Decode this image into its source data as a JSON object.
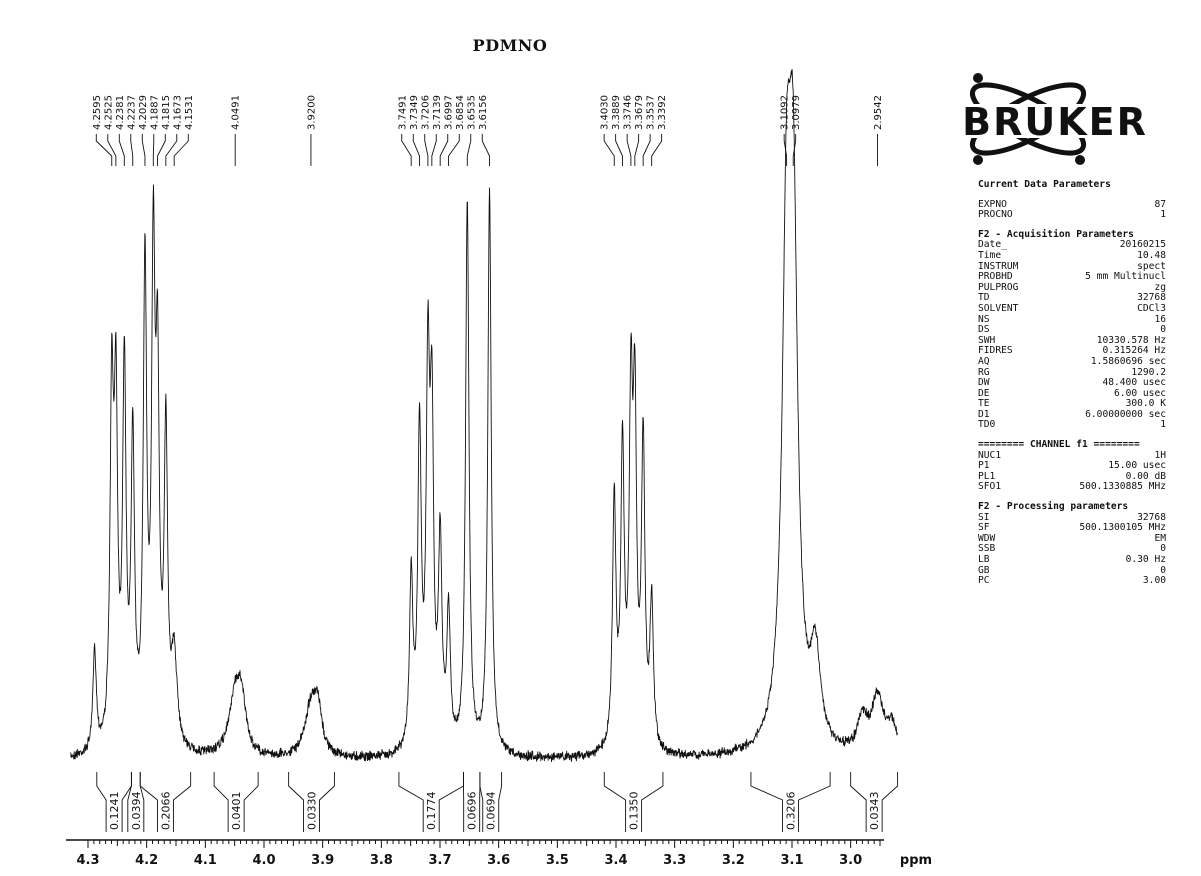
{
  "title": "PDMNO",
  "logo": {
    "text": "BRUKER"
  },
  "params": {
    "current_header": "Current Data Parameters",
    "current": [
      {
        "k": "EXPNO",
        "v": "87"
      },
      {
        "k": "PROCNO",
        "v": "1"
      }
    ],
    "acq_header": "F2 - Acquisition Parameters",
    "acq": [
      {
        "k": "Date_",
        "v": "20160215"
      },
      {
        "k": "Time",
        "v": "10.48"
      },
      {
        "k": "INSTRUM",
        "v": "spect"
      },
      {
        "k": "PROBHD",
        "v": "5 mm Multinucl"
      },
      {
        "k": "PULPROG",
        "v": "zg"
      },
      {
        "k": "TD",
        "v": "32768"
      },
      {
        "k": "SOLVENT",
        "v": "CDCl3"
      },
      {
        "k": "NS",
        "v": "16"
      },
      {
        "k": "DS",
        "v": "0"
      },
      {
        "k": "SWH",
        "v": "10330.578 Hz"
      },
      {
        "k": "FIDRES",
        "v": "0.315264 Hz"
      },
      {
        "k": "AQ",
        "v": "1.5860696 sec"
      },
      {
        "k": "RG",
        "v": "1290.2"
      },
      {
        "k": "DW",
        "v": "48.400 usec"
      },
      {
        "k": "DE",
        "v": "6.00 usec"
      },
      {
        "k": "TE",
        "v": "300.0 K"
      },
      {
        "k": "D1",
        "v": "6.00000000 sec"
      },
      {
        "k": "TD0",
        "v": "1"
      }
    ],
    "channel_header": "======== CHANNEL f1 ========",
    "channel": [
      {
        "k": "NUC1",
        "v": "1H"
      },
      {
        "k": "P1",
        "v": "15.00 usec"
      },
      {
        "k": "PL1",
        "v": "0.00 dB"
      },
      {
        "k": "SFO1",
        "v": "500.1330885 MHz"
      }
    ],
    "proc_header": "F2 - Processing parameters",
    "proc": [
      {
        "k": "SI",
        "v": "32768"
      },
      {
        "k": "SF",
        "v": "500.1300105 MHz"
      },
      {
        "k": "WDW",
        "v": "EM"
      },
      {
        "k": "SSB",
        "v": "0"
      },
      {
        "k": "LB",
        "v": "0.30 Hz"
      },
      {
        "k": "GB",
        "v": "0"
      },
      {
        "k": "PC",
        "v": "3.00"
      }
    ]
  },
  "chart_data": {
    "type": "line",
    "title": "PDMNO",
    "xlabel": "ppm",
    "xlim": [
      4.3,
      2.95
    ],
    "x_reversed": true,
    "ticks": [
      {
        "v": 4.3,
        "label": "4.3"
      },
      {
        "v": 4.2,
        "label": "4.2"
      },
      {
        "v": 4.1,
        "label": "4.1"
      },
      {
        "v": 4.0,
        "label": "4.0"
      },
      {
        "v": 3.9,
        "label": "3.9"
      },
      {
        "v": 3.8,
        "label": "3.8"
      },
      {
        "v": 3.7,
        "label": "3.7"
      },
      {
        "v": 3.6,
        "label": "3.6"
      },
      {
        "v": 3.5,
        "label": "3.5"
      },
      {
        "v": 3.4,
        "label": "3.4"
      },
      {
        "v": 3.3,
        "label": "3.3"
      },
      {
        "v": 3.2,
        "label": "3.2"
      },
      {
        "v": 3.1,
        "label": "3.1"
      },
      {
        "v": 3.0,
        "label": "3.0"
      }
    ],
    "peak_labels": [
      {
        "ppm": 4.2595,
        "label": "4.2595"
      },
      {
        "ppm": 4.2525,
        "label": "4.2525"
      },
      {
        "ppm": 4.2381,
        "label": "4.2381"
      },
      {
        "ppm": 4.2237,
        "label": "4.2237"
      },
      {
        "ppm": 4.2029,
        "label": "4.2029"
      },
      {
        "ppm": 4.1887,
        "label": "4.1887"
      },
      {
        "ppm": 4.1815,
        "label": "4.1815"
      },
      {
        "ppm": 4.1673,
        "label": "4.1673"
      },
      {
        "ppm": 4.1531,
        "label": "4.1531"
      },
      {
        "ppm": 4.0491,
        "label": "4.0491"
      },
      {
        "ppm": 3.92,
        "label": "3.9200"
      },
      {
        "ppm": 3.7491,
        "label": "3.7491"
      },
      {
        "ppm": 3.7349,
        "label": "3.7349"
      },
      {
        "ppm": 3.7206,
        "label": "3.7206"
      },
      {
        "ppm": 3.7139,
        "label": "3.7139"
      },
      {
        "ppm": 3.6997,
        "label": "3.6997"
      },
      {
        "ppm": 3.6854,
        "label": "3.6854"
      },
      {
        "ppm": 3.6535,
        "label": "3.6535"
      },
      {
        "ppm": 3.6156,
        "label": "3.6156"
      },
      {
        "ppm": 3.403,
        "label": "3.4030"
      },
      {
        "ppm": 3.3889,
        "label": "3.3889"
      },
      {
        "ppm": 3.3746,
        "label": "3.3746"
      },
      {
        "ppm": 3.3679,
        "label": "3.3679"
      },
      {
        "ppm": 3.3537,
        "label": "3.3537"
      },
      {
        "ppm": 3.3392,
        "label": "3.3392"
      },
      {
        "ppm": 3.1092,
        "label": "3.1092"
      },
      {
        "ppm": 3.0979,
        "label": "3.0979"
      },
      {
        "ppm": 2.9542,
        "label": "2.9542"
      }
    ],
    "integrals": [
      {
        "from": 4.285,
        "to": 4.226,
        "value": "0.1241"
      },
      {
        "from": 4.226,
        "to": 4.211,
        "value": "0.0394"
      },
      {
        "from": 4.211,
        "to": 4.125,
        "value": "0.2066"
      },
      {
        "from": 4.085,
        "to": 4.01,
        "value": "0.0401"
      },
      {
        "from": 3.958,
        "to": 3.88,
        "value": "0.0330"
      },
      {
        "from": 3.77,
        "to": 3.66,
        "value": "0.1774"
      },
      {
        "from": 3.66,
        "to": 3.632,
        "value": "0.0696"
      },
      {
        "from": 3.632,
        "to": 3.595,
        "value": "0.0694"
      },
      {
        "from": 3.42,
        "to": 3.32,
        "value": "0.1350"
      },
      {
        "from": 3.17,
        "to": 3.035,
        "value": "0.3206"
      },
      {
        "from": 3.0,
        "to": 2.92,
        "value": "0.0343"
      }
    ],
    "peaks": [
      {
        "ppm": 4.2887,
        "h": 0.18,
        "w": 0.0035
      },
      {
        "ppm": 4.2595,
        "h": 0.6,
        "w": 0.0035
      },
      {
        "ppm": 4.2525,
        "h": 0.58,
        "w": 0.0035
      },
      {
        "ppm": 4.2381,
        "h": 0.66,
        "w": 0.0035
      },
      {
        "ppm": 4.2237,
        "h": 0.54,
        "w": 0.0035
      },
      {
        "ppm": 4.2029,
        "h": 0.84,
        "w": 0.0035
      },
      {
        "ppm": 4.1887,
        "h": 0.82,
        "w": 0.0035
      },
      {
        "ppm": 4.1815,
        "h": 0.6,
        "w": 0.0035
      },
      {
        "ppm": 4.1673,
        "h": 0.55,
        "w": 0.0035
      },
      {
        "ppm": 4.1531,
        "h": 0.16,
        "w": 0.006
      },
      {
        "ppm": 4.0491,
        "h": 0.11,
        "w": 0.012
      },
      {
        "ppm": 4.038,
        "h": 0.08,
        "w": 0.008
      },
      {
        "ppm": 3.92,
        "h": 0.09,
        "w": 0.012
      },
      {
        "ppm": 3.908,
        "h": 0.07,
        "w": 0.008
      },
      {
        "ppm": 3.7491,
        "h": 0.3,
        "w": 0.0035
      },
      {
        "ppm": 3.7349,
        "h": 0.56,
        "w": 0.0035
      },
      {
        "ppm": 3.7206,
        "h": 0.64,
        "w": 0.0035
      },
      {
        "ppm": 3.7139,
        "h": 0.55,
        "w": 0.0035
      },
      {
        "ppm": 3.6997,
        "h": 0.36,
        "w": 0.0035
      },
      {
        "ppm": 3.6854,
        "h": 0.24,
        "w": 0.0035
      },
      {
        "ppm": 3.6535,
        "h": 0.98,
        "w": 0.0035
      },
      {
        "ppm": 3.6156,
        "h": 1.0,
        "w": 0.0035
      },
      {
        "ppm": 3.403,
        "h": 0.44,
        "w": 0.0035
      },
      {
        "ppm": 3.3889,
        "h": 0.52,
        "w": 0.0035
      },
      {
        "ppm": 3.3746,
        "h": 0.58,
        "w": 0.0035
      },
      {
        "ppm": 3.3679,
        "h": 0.56,
        "w": 0.0035
      },
      {
        "ppm": 3.3537,
        "h": 0.54,
        "w": 0.0035
      },
      {
        "ppm": 3.3392,
        "h": 0.26,
        "w": 0.0035
      },
      {
        "ppm": 3.1092,
        "h": 0.82,
        "w": 0.009
      },
      {
        "ppm": 3.0979,
        "h": 0.85,
        "w": 0.009
      },
      {
        "ppm": 3.06,
        "h": 0.16,
        "w": 0.01
      },
      {
        "ppm": 2.98,
        "h": 0.06,
        "w": 0.01
      },
      {
        "ppm": 2.9542,
        "h": 0.1,
        "w": 0.012
      },
      {
        "ppm": 2.93,
        "h": 0.05,
        "w": 0.01
      }
    ]
  }
}
